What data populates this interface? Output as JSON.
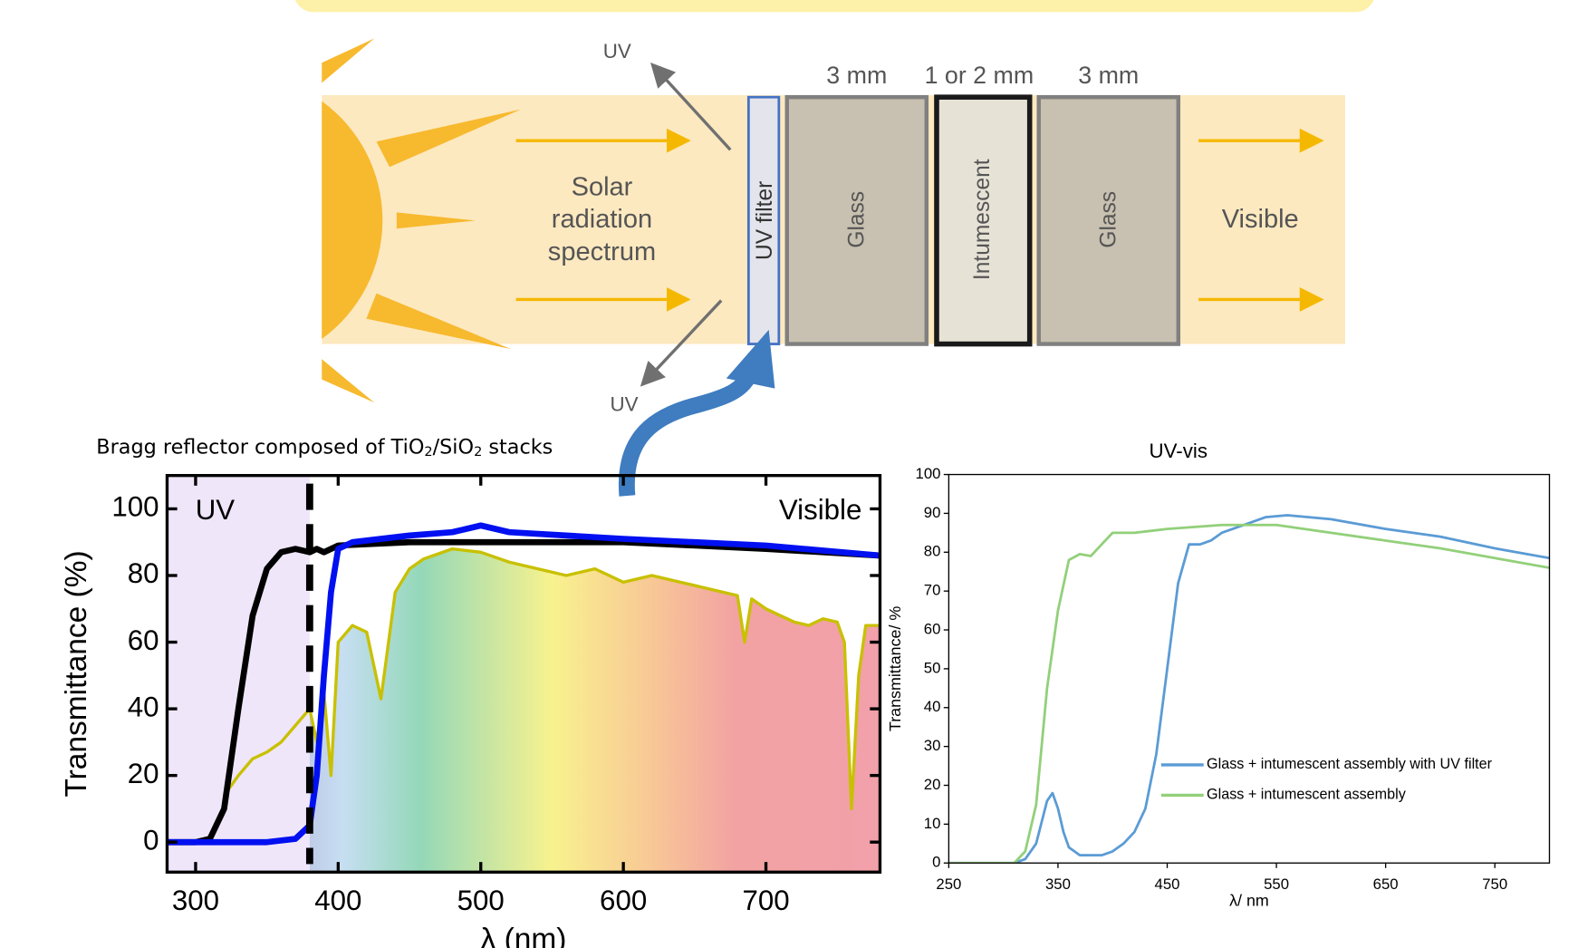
{
  "diagram": {
    "uv_top": "UV",
    "uv_bottom": "UV",
    "solar_label": [
      "Solar",
      "radiation",
      "spectrum"
    ],
    "thickness": [
      "3 mm",
      "1 or 2 mm",
      "3 mm"
    ],
    "layers": [
      "UV filter",
      "Glass",
      "Intumescent",
      "Glass"
    ],
    "visible": "Visible",
    "bragg": [
      "Bragg reflector composed of TiO",
      "2",
      "/SiO",
      "2",
      " stacks"
    ]
  },
  "chart_data": [
    {
      "type": "line",
      "xlabel": "λ (nm)",
      "ylabel": "Transmittance (%)",
      "annotations": {
        "uv": "UV",
        "visible": "Visible"
      },
      "uv_boundary": 380,
      "xlim": [
        280,
        780
      ],
      "ylim": [
        -9,
        110
      ],
      "xticks": [
        300,
        400,
        500,
        600,
        700
      ],
      "yticks": [
        0,
        20,
        40,
        60,
        80,
        100
      ],
      "series": [
        {
          "color": "#c8c000",
          "x": [
            320,
            330,
            340,
            350,
            360,
            370,
            380,
            385,
            390,
            395,
            400,
            410,
            420,
            430,
            440,
            450,
            460,
            480,
            500,
            520,
            540,
            560,
            580,
            600,
            620,
            640,
            660,
            680,
            685,
            690,
            700,
            710,
            720,
            730,
            740,
            750,
            755,
            760,
            765,
            770,
            780
          ],
          "values": [
            14,
            20,
            25,
            27,
            30,
            35,
            40,
            30,
            45,
            20,
            60,
            65,
            63,
            43,
            75,
            82,
            85,
            88,
            87,
            84,
            82,
            80,
            82,
            78,
            80,
            78,
            76,
            74,
            60,
            73,
            70,
            68,
            66,
            65,
            67,
            66,
            60,
            10,
            50,
            65,
            65
          ]
        },
        {
          "color": "#000000",
          "x": [
            280,
            300,
            310,
            320,
            330,
            340,
            350,
            360,
            370,
            380,
            385,
            390,
            400,
            450,
            500,
            600,
            700,
            780
          ],
          "values": [
            0,
            0,
            1,
            10,
            40,
            68,
            82,
            87,
            88,
            87,
            88,
            87,
            89,
            90,
            90,
            90,
            88,
            86
          ]
        },
        {
          "color": "#0010f0",
          "x": [
            280,
            350,
            370,
            380,
            385,
            390,
            395,
            400,
            410,
            450,
            480,
            500,
            520,
            600,
            700,
            780
          ],
          "values": [
            0,
            0,
            1,
            5,
            20,
            50,
            75,
            88,
            90,
            92,
            93,
            95,
            93,
            91,
            89,
            86
          ]
        }
      ]
    },
    {
      "type": "line",
      "title": "UV-vis",
      "xlabel": "λ/ nm",
      "ylabel": "Transmittance/ %",
      "xlim": [
        250,
        800
      ],
      "ylim": [
        0,
        100
      ],
      "xticks": [
        250,
        350,
        450,
        550,
        650,
        750
      ],
      "yticks": [
        0,
        10,
        20,
        30,
        40,
        50,
        60,
        70,
        80,
        90,
        100
      ],
      "series": [
        {
          "name": "Glass + intumescent assembly with UV filter",
          "color": "#5b9bd5",
          "x": [
            250,
            310,
            320,
            330,
            340,
            345,
            350,
            355,
            360,
            370,
            390,
            400,
            410,
            420,
            430,
            440,
            450,
            460,
            470,
            480,
            490,
            500,
            520,
            540,
            560,
            600,
            650,
            700,
            750,
            800
          ],
          "values": [
            0,
            0,
            1,
            5,
            16,
            18,
            14,
            8,
            4,
            2,
            2,
            3,
            5,
            8,
            14,
            28,
            50,
            72,
            82,
            82,
            83,
            85,
            87,
            89,
            89.5,
            88.5,
            86,
            84,
            81,
            78.5
          ]
        },
        {
          "name": "Glass + intumescent assembly",
          "color": "#92d07a",
          "x": [
            250,
            310,
            320,
            330,
            340,
            350,
            360,
            370,
            380,
            390,
            400,
            420,
            450,
            500,
            550,
            600,
            650,
            700,
            750,
            800
          ],
          "values": [
            0,
            0,
            3,
            15,
            45,
            65,
            78,
            79.5,
            79,
            82,
            85,
            85,
            86,
            87,
            87,
            85,
            83,
            81,
            78.5,
            76
          ]
        }
      ]
    }
  ]
}
